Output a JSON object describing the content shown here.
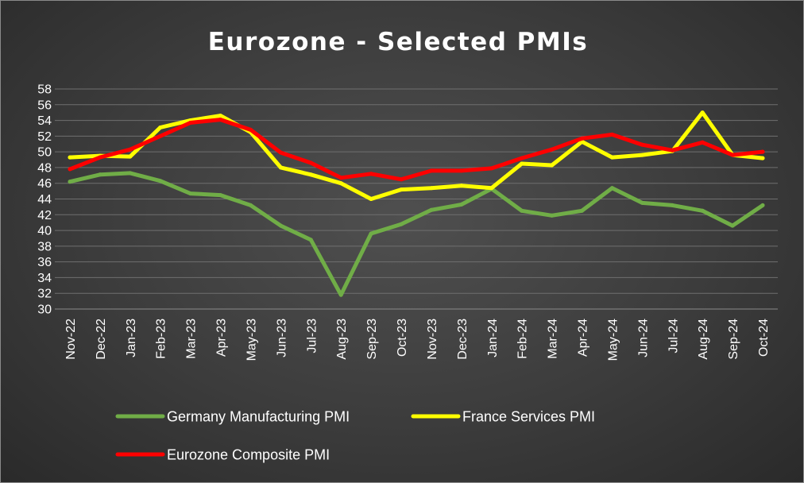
{
  "chart_data": {
    "type": "line",
    "title": "Eurozone - Selected PMIs",
    "categories": [
      "Nov-22",
      "Dec-22",
      "Jan-23",
      "Feb-23",
      "Mar-23",
      "Apr-23",
      "May-23",
      "Jun-23",
      "Jul-23",
      "Aug-23",
      "Sep-23",
      "Oct-23",
      "Nov-23",
      "Dec-23",
      "Jan-24",
      "Feb-24",
      "Mar-24",
      "Apr-24",
      "May-24",
      "Jun-24",
      "Jul-24",
      "Aug-24",
      "Sep-24",
      "Oct-24"
    ],
    "ylim": [
      30,
      58
    ],
    "yticks": [
      30,
      32,
      34,
      36,
      38,
      40,
      42,
      44,
      46,
      48,
      50,
      52,
      54,
      56,
      58
    ],
    "grid": true,
    "legend_position": "bottom",
    "series": [
      {
        "name": "Germany Manufacturing PMI",
        "color": "#70ad47",
        "values": [
          46.2,
          47.1,
          47.3,
          46.3,
          44.7,
          44.5,
          43.2,
          40.6,
          38.8,
          31.8,
          39.6,
          40.8,
          42.6,
          43.3,
          45.3,
          42.5,
          41.9,
          42.5,
          45.4,
          43.5,
          43.2,
          42.5,
          40.6,
          43.2
        ]
      },
      {
        "name": "France Services PMI",
        "color": "#ffff00",
        "values": [
          49.3,
          49.5,
          49.4,
          53.1,
          54.0,
          54.6,
          52.5,
          48.0,
          47.1,
          46.0,
          44.0,
          45.2,
          45.4,
          45.7,
          45.4,
          48.5,
          48.3,
          51.3,
          49.3,
          49.6,
          50.1,
          55.0,
          49.6,
          49.2
        ]
      },
      {
        "name": "Eurozone Composite PMI",
        "color": "#ff0000",
        "values": [
          47.8,
          49.3,
          50.3,
          52.0,
          53.7,
          54.1,
          52.8,
          49.9,
          48.6,
          46.7,
          47.2,
          46.5,
          47.6,
          47.6,
          47.9,
          49.2,
          50.3,
          51.7,
          52.2,
          50.9,
          50.2,
          51.2,
          49.6,
          50.0
        ]
      }
    ]
  }
}
